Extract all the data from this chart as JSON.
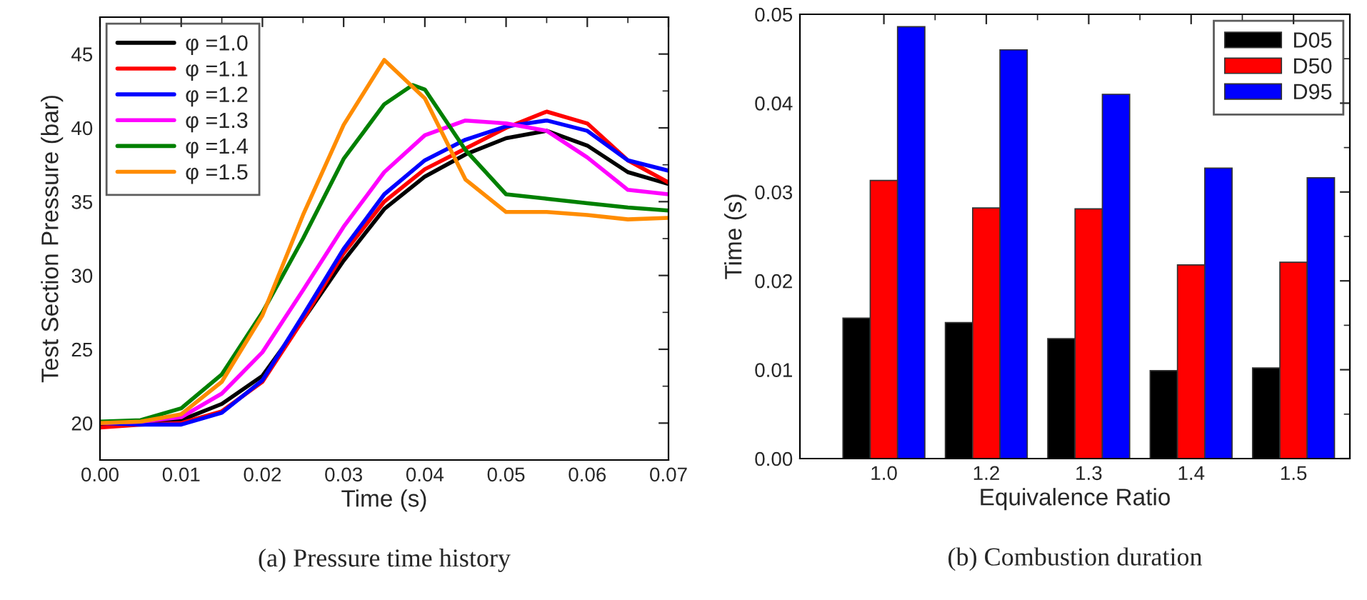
{
  "chart_data": [
    {
      "type": "line",
      "xlabel": "Time (s)",
      "ylabel": "Test Section Pressure (bar)",
      "annotations": [
        "(a) Pressure time history"
      ],
      "x": [
        0,
        0.005,
        0.01,
        0.015,
        0.02,
        0.025,
        0.03,
        0.035,
        0.04,
        0.045,
        0.05,
        0.055,
        0.06,
        0.065,
        0.07
      ],
      "series": [
        {
          "name": "φ =1.0",
          "color": "#000000",
          "values": [
            19.8,
            20.0,
            20.2,
            21.3,
            23.2,
            27.0,
            31.0,
            34.5,
            36.7,
            38.2,
            39.3,
            39.8,
            38.8,
            37.0,
            36.2
          ]
        },
        {
          "name": "φ =1.1",
          "color": "#ff0000",
          "values": [
            19.7,
            19.9,
            20.0,
            20.8,
            22.8,
            27.0,
            31.5,
            35.0,
            37.2,
            38.6,
            40.0,
            41.1,
            40.3,
            37.8,
            36.3
          ]
        },
        {
          "name": "φ =1.2",
          "color": "#0000ff",
          "values": [
            20.0,
            19.9,
            19.9,
            20.7,
            22.9,
            27.3,
            31.8,
            35.5,
            37.8,
            39.2,
            40.1,
            40.5,
            39.8,
            37.8,
            37.1
          ]
        },
        {
          "name": "φ =1.3",
          "color": "#ff00ff",
          "values": [
            20.0,
            20.1,
            20.4,
            22.0,
            24.8,
            29.0,
            33.3,
            37.0,
            39.5,
            40.5,
            40.3,
            39.8,
            38.0,
            35.8,
            35.5
          ]
        },
        {
          "name": "φ =1.4",
          "color": "#008000",
          "x": [
            0,
            0.005,
            0.01,
            0.015,
            0.02,
            0.025,
            0.03,
            0.035,
            0.0385,
            0.04,
            0.045,
            0.05,
            0.055,
            0.06,
            0.065,
            0.07
          ],
          "values": [
            20.1,
            20.2,
            21.0,
            23.3,
            27.5,
            32.5,
            37.9,
            41.6,
            42.9,
            42.6,
            38.5,
            35.5,
            35.2,
            34.9,
            34.6,
            34.4
          ]
        },
        {
          "name": "φ =1.5",
          "color": "#ff8c00",
          "values": [
            20.0,
            20.1,
            20.6,
            22.8,
            27.3,
            34.1,
            40.2,
            44.6,
            42.0,
            36.5,
            34.3,
            34.3,
            34.1,
            33.8,
            33.9
          ]
        }
      ],
      "xlim": [
        0,
        0.07
      ],
      "xticks": [
        {
          "value": 0,
          "label": "0.00"
        },
        0.01,
        0.02,
        0.03,
        0.04,
        0.05,
        0.06,
        0.07
      ],
      "ylim": [
        17.5,
        47.5
      ],
      "yticks": [
        20,
        25,
        30,
        35,
        40,
        45
      ],
      "legend": "top left",
      "grid": false
    },
    {
      "type": "bar",
      "xlabel": "Equivalence Ratio",
      "ylabel": "Time (s)",
      "annotations": [
        "(b) Combustion duration"
      ],
      "categories": [
        "1.0",
        "1.2",
        "1.3",
        "1.4",
        "1.5"
      ],
      "series": [
        {
          "name": "D05",
          "color": "#000000",
          "values": [
            0.0158,
            0.0153,
            0.0135,
            0.0099,
            0.0102
          ]
        },
        {
          "name": "D50",
          "color": "#ff0000",
          "values": [
            0.0313,
            0.0282,
            0.0281,
            0.0218,
            0.0221
          ]
        },
        {
          "name": "D95",
          "color": "#0000ff",
          "values": [
            0.0486,
            0.046,
            0.041,
            0.0327,
            0.0316
          ]
        }
      ],
      "ylim": [
        0,
        0.05
      ],
      "yticks": [
        {
          "value": 0,
          "label": "0.00"
        },
        0.01,
        0.02,
        0.03,
        0.04,
        0.05
      ],
      "legend": "top right",
      "grid": false
    }
  ]
}
